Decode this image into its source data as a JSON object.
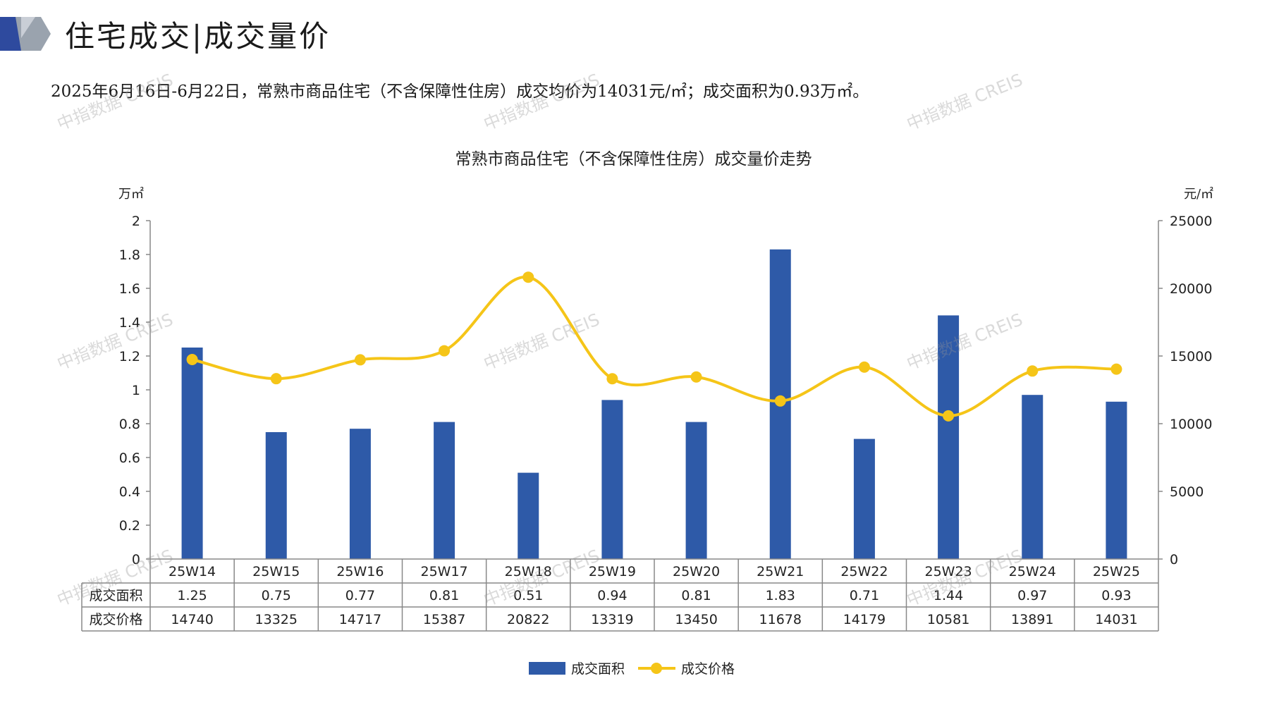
{
  "header": {
    "title": "住宅成交|成交量价"
  },
  "summary": "2025年6月16日-6月22日，常熟市商品住宅（不含保障性住房）成交均价为14031元/㎡；成交面积为0.93万㎡。",
  "watermark_text": "中指数据 CREIS",
  "colors": {
    "bar": "#2E5AA8",
    "line": "#F5C518",
    "axis": "#888888",
    "logo_blue": "#2E4A9E",
    "logo_gray": "#9AA3AE"
  },
  "chart_data": {
    "type": "bar",
    "title": "常熟市商品住宅（不含保障性住房）成交量价走势",
    "categories": [
      "25W14",
      "25W15",
      "25W16",
      "25W17",
      "25W18",
      "25W19",
      "25W20",
      "25W21",
      "25W22",
      "25W23",
      "25W24",
      "25W25"
    ],
    "series": [
      {
        "name": "成交面积",
        "type": "bar",
        "axis": "left",
        "values": [
          1.25,
          0.75,
          0.77,
          0.81,
          0.51,
          0.94,
          0.81,
          1.83,
          0.71,
          1.44,
          0.97,
          0.93
        ]
      },
      {
        "name": "成交价格",
        "type": "line",
        "axis": "right",
        "values": [
          14740,
          13325,
          14717,
          15387,
          20822,
          13319,
          13450,
          11678,
          14179,
          10581,
          13891,
          14031
        ]
      }
    ],
    "left_axis": {
      "unit": "万㎡",
      "ylim": [
        0,
        2
      ],
      "ticks": [
        "0",
        "0.2",
        "0.4",
        "0.6",
        "0.8",
        "1",
        "1.2",
        "1.4",
        "1.6",
        "1.8",
        "2"
      ]
    },
    "right_axis": {
      "unit": "元/㎡",
      "ylim": [
        0,
        25000
      ],
      "ticks": [
        "0",
        "5000",
        "10000",
        "15000",
        "20000",
        "25000"
      ]
    },
    "table_rows": [
      {
        "label": "成交面积",
        "values": [
          "1.25",
          "0.75",
          "0.77",
          "0.81",
          "0.51",
          "0.94",
          "0.81",
          "1.83",
          "0.71",
          "1.44",
          "0.97",
          "0.93"
        ]
      },
      {
        "label": "成交价格",
        "values": [
          "14740",
          "13325",
          "14717",
          "15387",
          "20822",
          "13319",
          "13450",
          "11678",
          "14179",
          "10581",
          "13891",
          "14031"
        ]
      }
    ],
    "legend": [
      "成交面积",
      "成交价格"
    ],
    "legend_position": "bottom"
  }
}
